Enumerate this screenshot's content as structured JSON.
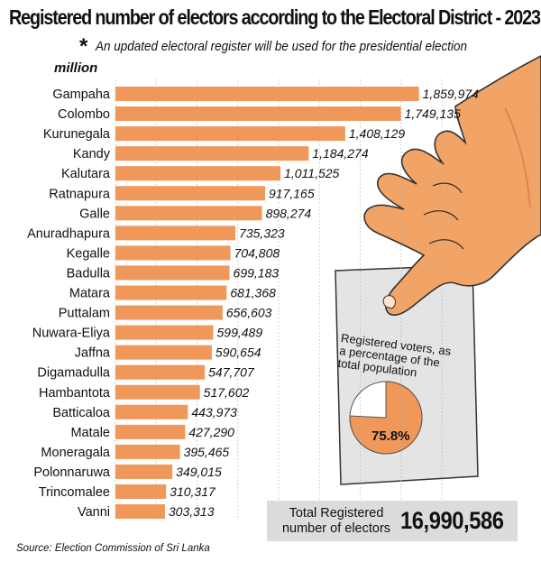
{
  "title": "Registered number of electors according to the Electoral District - 2023",
  "subtitle": "An updated electoral register will be used for the presidential election",
  "asterisk": "*",
  "unit_label": "million",
  "source": "Source: Election Commission of Sri Lanka",
  "total": {
    "label": "Total Registered number of electors",
    "value": "16,990,586"
  },
  "percentage_card": {
    "label": "Registered voters, as a percentage of the total population",
    "value_label": "75.8%",
    "fraction": 0.758
  },
  "colors": {
    "bar": "#f0975a",
    "pie_fill": "#f0975a",
    "pie_rest": "#ffffff",
    "card": "#e4e4e4",
    "total_box": "#dcdcdc"
  },
  "chart_data": {
    "type": "bar",
    "orientation": "horizontal",
    "title": "Registered number of electors according to the Electoral District - 2023",
    "categories": [
      "Gampaha",
      "Colombo",
      "Kurunegala",
      "Kandy",
      "Kalutara",
      "Ratnapura",
      "Galle",
      "Anuradhapura",
      "Kegalle",
      "Badulla",
      "Matara",
      "Puttalam",
      "Nuwara-Eliya",
      "Jaffna",
      "Digamadulla",
      "Hambantota",
      "Batticaloa",
      "Matale",
      "Moneragala",
      "Polonnaruwa",
      "Trincomalee",
      "Vanni"
    ],
    "values": [
      1859974,
      1749135,
      1408129,
      1184274,
      1011525,
      917165,
      898274,
      735323,
      704808,
      699183,
      681368,
      656603,
      599489,
      590654,
      547707,
      517602,
      443973,
      427290,
      395465,
      349015,
      310317,
      303313
    ],
    "value_labels": [
      "1,859,974",
      "1,749,135",
      "1,408,129",
      "1,184,274",
      "1,011,525",
      "917,165",
      "898,274",
      "735,323",
      "704,808",
      "699,183",
      "681,368",
      "656,603",
      "599,489",
      "590,654",
      "547,707",
      "517,602",
      "443,973",
      "427,290",
      "395,465",
      "349,015",
      "310,317",
      "303,313"
    ],
    "xlim": [
      0,
      2000000
    ],
    "grid": true,
    "legend": "none"
  }
}
